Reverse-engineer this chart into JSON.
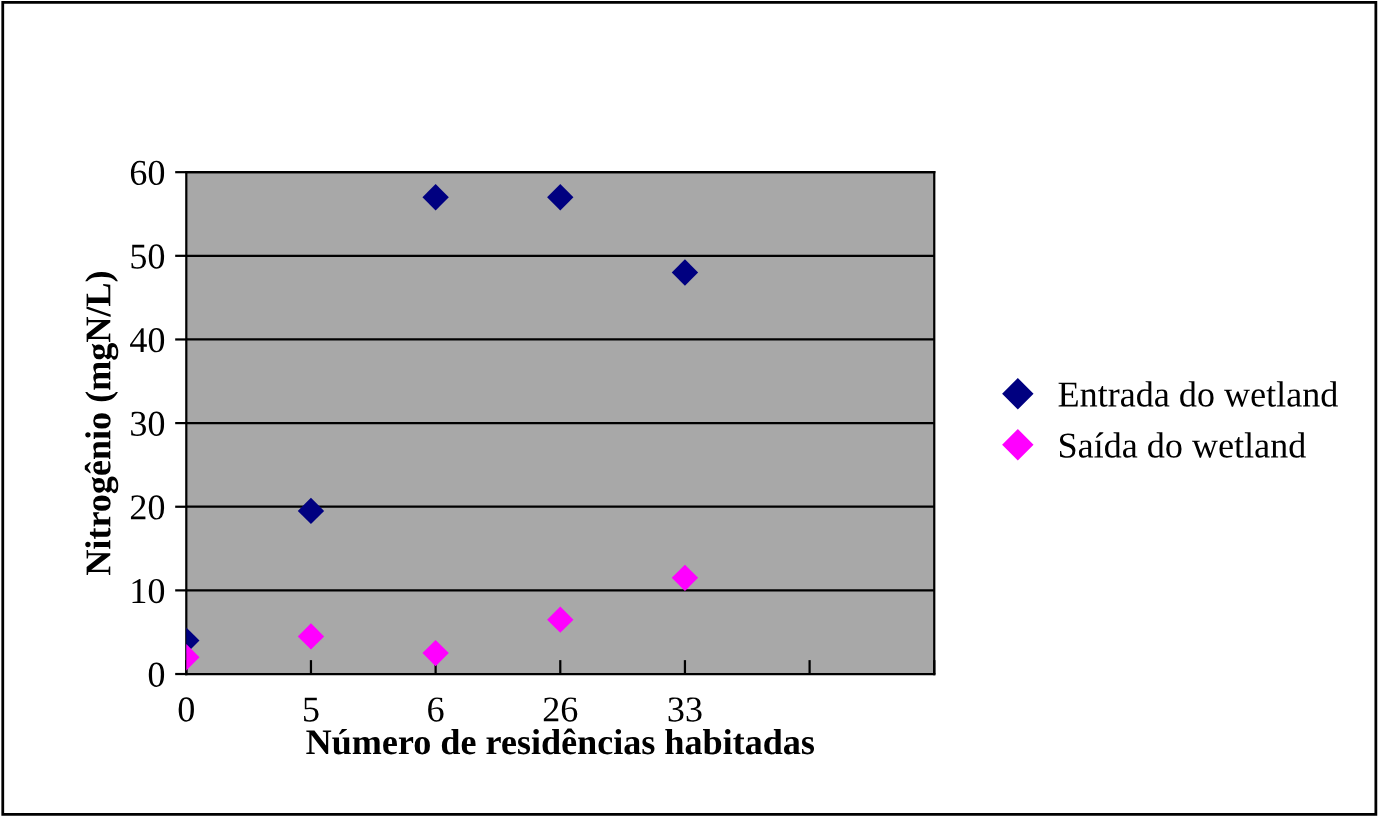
{
  "chart_data": {
    "type": "scatter",
    "xlabel": "Número de residências habitadas",
    "ylabel": "Nitrogênio (mgN/L)",
    "categories": [
      "0",
      "5",
      "6",
      "26",
      "33",
      null,
      null
    ],
    "series": [
      {
        "name": "Entrada do wetland",
        "color": "#000080",
        "values": [
          4,
          19.5,
          57,
          57,
          48,
          null,
          null
        ]
      },
      {
        "name": "Saída do wetland",
        "color": "#ff00ff",
        "values": [
          2,
          4.5,
          2.5,
          6.5,
          11.5,
          null,
          null
        ]
      }
    ],
    "ylim": [
      0,
      60
    ],
    "yticks": [
      0,
      10,
      20,
      30,
      40,
      50,
      60
    ],
    "grid": "y",
    "legend": "right",
    "marker": "diamond"
  }
}
